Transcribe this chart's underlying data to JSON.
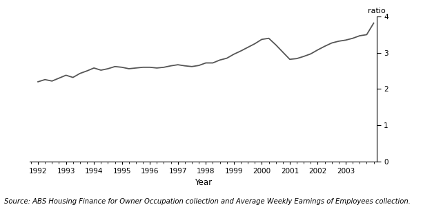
{
  "x": [
    1992.0,
    1992.25,
    1992.5,
    1992.75,
    1993.0,
    1993.25,
    1993.5,
    1993.75,
    1994.0,
    1994.25,
    1994.5,
    1994.75,
    1995.0,
    1995.25,
    1995.5,
    1995.75,
    1996.0,
    1996.25,
    1996.5,
    1996.75,
    1997.0,
    1997.25,
    1997.5,
    1997.75,
    1998.0,
    1998.25,
    1998.5,
    1998.75,
    1999.0,
    1999.25,
    1999.5,
    1999.75,
    2000.0,
    2000.25,
    2000.5,
    2000.75,
    2001.0,
    2001.25,
    2001.5,
    2001.75,
    2002.0,
    2002.25,
    2002.5,
    2002.75,
    2003.0,
    2003.25,
    2003.5,
    2003.75,
    2004.0
  ],
  "y": [
    2.2,
    2.26,
    2.22,
    2.3,
    2.38,
    2.32,
    2.43,
    2.5,
    2.58,
    2.52,
    2.56,
    2.62,
    2.6,
    2.56,
    2.58,
    2.6,
    2.6,
    2.58,
    2.6,
    2.64,
    2.67,
    2.64,
    2.62,
    2.65,
    2.72,
    2.72,
    2.8,
    2.85,
    2.96,
    3.05,
    3.15,
    3.25,
    3.37,
    3.4,
    3.22,
    3.02,
    2.82,
    2.84,
    2.9,
    2.97,
    3.08,
    3.18,
    3.27,
    3.32,
    3.35,
    3.4,
    3.47,
    3.5,
    3.82
  ],
  "line_color": "#555555",
  "line_width": 1.3,
  "xlabel": "Year",
  "ylabel_right": "ratio",
  "xlim": [
    1991.7,
    2004.1
  ],
  "ylim": [
    0,
    4
  ],
  "yticks": [
    0,
    1,
    2,
    3,
    4
  ],
  "xticks": [
    1992,
    1993,
    1994,
    1995,
    1996,
    1997,
    1998,
    1999,
    2000,
    2001,
    2002,
    2003
  ],
  "source_text": "Source: ABS Housing Finance for Owner Occupation collection and Average Weekly Earnings of Employees collection.",
  "background_color": "#ffffff",
  "tick_label_fontsize": 7.5,
  "xlabel_fontsize": 8.5,
  "ylabel_fontsize": 8,
  "source_fontsize": 7.2
}
